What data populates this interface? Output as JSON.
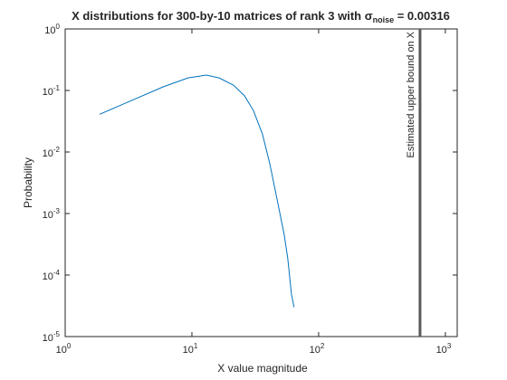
{
  "chart_data": {
    "type": "line",
    "title": "X distributions for 300-by-10  matrices of rank 3 with σ",
    "title_subscript": "noise",
    "title_suffix": " = 0.00316",
    "x_label": "X value magnitude",
    "y_label": "Probability",
    "log_x": true,
    "log_y": true,
    "xlim": [
      1,
      1240
    ],
    "ylim": [
      1e-05,
      1
    ],
    "xticks": [
      {
        "value": 1,
        "label": "10",
        "exponent": "0"
      },
      {
        "value": 10,
        "label": "10",
        "exponent": "1"
      },
      {
        "value": 100,
        "label": "10",
        "exponent": "2"
      },
      {
        "value": 1000,
        "label": "10",
        "exponent": "3"
      }
    ],
    "yticks": [
      {
        "value": 1e-05,
        "label": "10",
        "exponent": "-5"
      },
      {
        "value": 0.0001,
        "label": "10",
        "exponent": "-4"
      },
      {
        "value": 0.001,
        "label": "10",
        "exponent": "-3"
      },
      {
        "value": 0.01,
        "label": "10",
        "exponent": "-2"
      },
      {
        "value": 0.1,
        "label": "10",
        "exponent": "-1"
      },
      {
        "value": 1,
        "label": "10",
        "exponent": "0"
      }
    ],
    "series": [
      {
        "color": "#0072bd",
        "x": [
          1.87,
          5.9,
          9.3,
          13,
          16.4,
          21.3,
          26,
          30.6,
          36,
          41,
          47,
          53.5,
          57,
          61,
          64
        ],
        "values": [
          0.041,
          0.114,
          0.16,
          0.178,
          0.16,
          0.122,
          0.082,
          0.047,
          0.0196,
          0.0067,
          0.0017,
          0.00045,
          0.00019,
          4.9e-05,
          3e-05
        ]
      }
    ],
    "reference_line": {
      "x": 631,
      "color": "#5a5a5a",
      "label": "Estimated upper bound on X"
    }
  }
}
